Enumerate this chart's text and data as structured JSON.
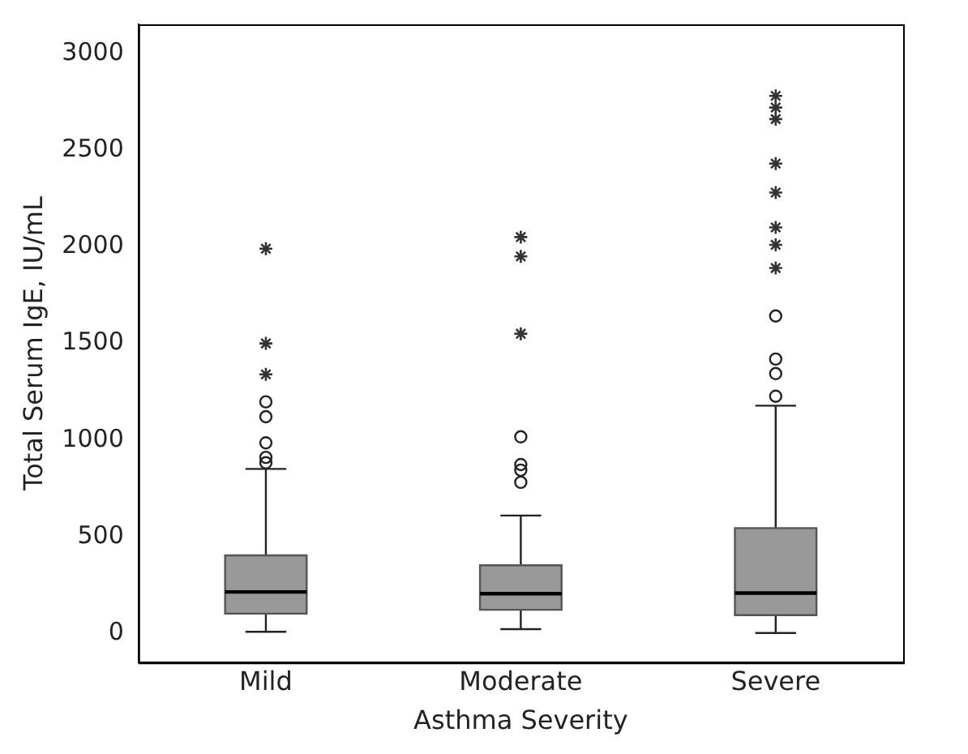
{
  "chart_data": {
    "type": "box",
    "xlabel": "Asthma Severity",
    "ylabel": "Total Serum IgE, IU/mL",
    "categories": [
      "Mild",
      "Moderate",
      "Severe"
    ],
    "ylim": [
      -150,
      3150
    ],
    "yticks": [
      0,
      500,
      1000,
      1500,
      2000,
      2500,
      3000
    ],
    "grid": false,
    "legend": false,
    "series": [
      {
        "color": "#999999",
        "marker": "circle",
        "boxes": [
          {
            "low": 9,
            "q1": 103,
            "median": 215,
            "q3": 404,
            "high": 851,
            "outliers": [
              883,
              911,
              986,
              1121,
              1198
            ]
          },
          {
            "low": 23,
            "q1": 123,
            "median": 206,
            "q3": 353,
            "high": 610,
            "outliers": [
              782,
              845,
              874,
              1017
            ]
          },
          {
            "low": 3,
            "q1": 95,
            "median": 209,
            "q3": 545,
            "high": 1178,
            "outliers": [
              1227,
              1344,
              1419,
              1642
            ]
          }
        ]
      },
      {
        "type": "scatter",
        "color": "#333333",
        "marker": "cross",
        "x": [
          "Mild",
          "Mild",
          "Mild",
          "Moderate",
          "Moderate",
          "Moderate",
          "Severe",
          "Severe",
          "Severe",
          "Severe",
          "Severe",
          "Severe",
          "Severe",
          "Severe"
        ],
        "values": [
          1340,
          1500,
          1990,
          1550,
          1950,
          2050,
          1890,
          2010,
          2100,
          2280,
          2430,
          2660,
          2720,
          2780
        ]
      }
    ]
  }
}
